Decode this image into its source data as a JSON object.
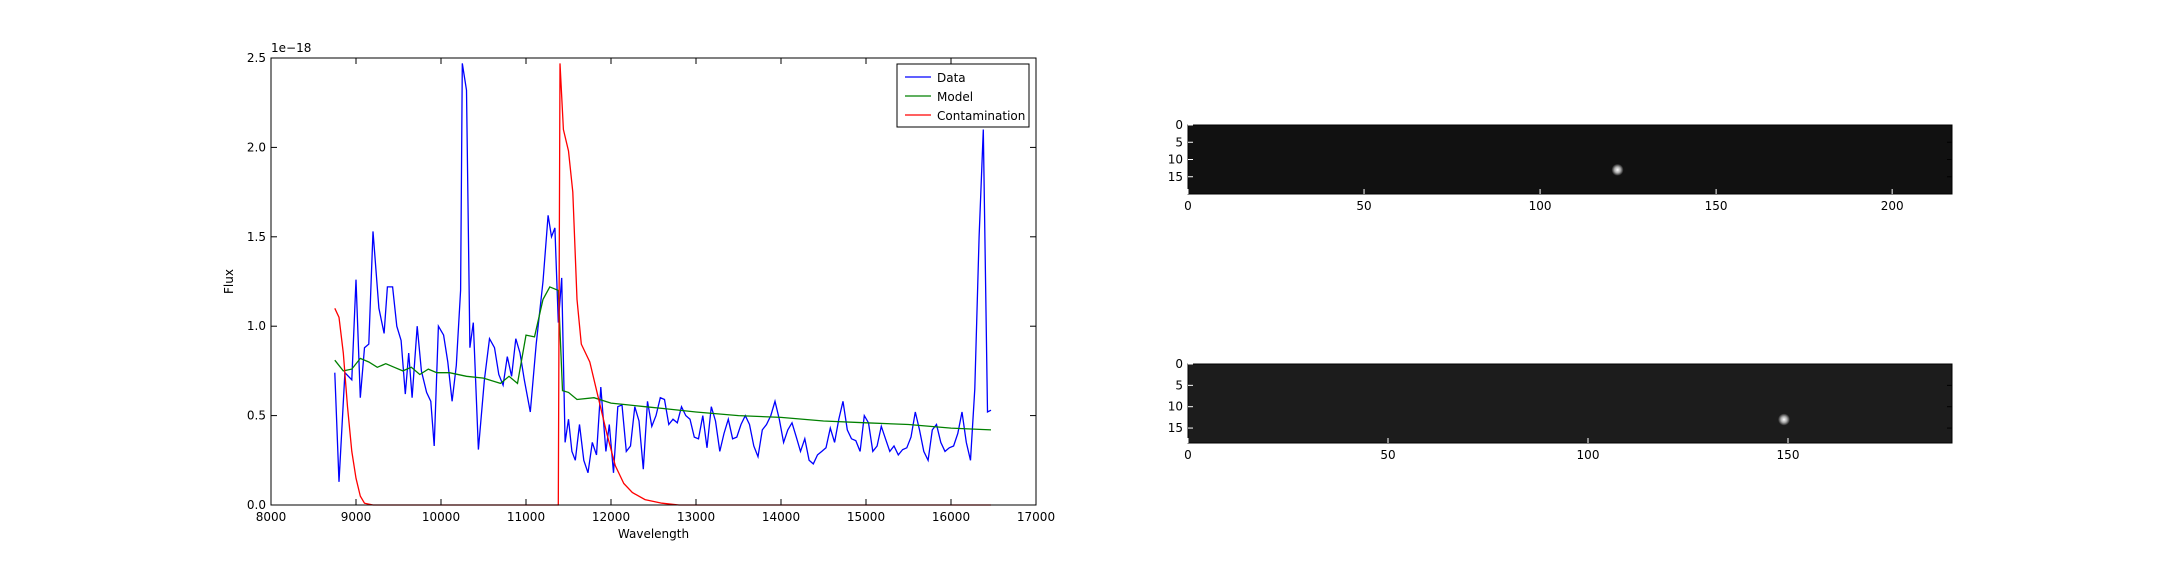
{
  "chart_data": [
    {
      "type": "line",
      "xlabel": "Wavelength",
      "ylabel": "Flux",
      "y_offset_label": "1e−18",
      "xlim": [
        8000,
        17000
      ],
      "xticks": [
        8000,
        9000,
        10000,
        11000,
        12000,
        13000,
        14000,
        15000,
        16000,
        17000
      ],
      "ylim": [
        0,
        2.5
      ],
      "yticks": [
        {
          "value": 0,
          "label": "0.0"
        },
        0.5,
        {
          "value": 1,
          "label": "1.0"
        },
        1.5,
        {
          "value": 2,
          "label": "2.0"
        },
        2.5
      ],
      "legend": "upper right",
      "series": [
        {
          "name": "Data",
          "color": "#0000ff",
          "x": [
            8750,
            8800,
            8870,
            8950,
            9000,
            9050,
            9100,
            9150,
            9200,
            9270,
            9330,
            9370,
            9430,
            9480,
            9530,
            9580,
            9620,
            9660,
            9720,
            9770,
            9830,
            9880,
            9920,
            9970,
            10030,
            10080,
            10130,
            10180,
            10230,
            10250,
            10300,
            10340,
            10380,
            10440,
            10510,
            10570,
            10630,
            10680,
            10730,
            10780,
            10830,
            10880,
            10930,
            10980,
            11050,
            11120,
            11200,
            11260,
            11300,
            11340,
            11380,
            11420,
            11460,
            11500,
            11540,
            11580,
            11630,
            11680,
            11730,
            11780,
            11830,
            11880,
            11940,
            11980,
            12030,
            12080,
            12130,
            12180,
            12230,
            12280,
            12330,
            12380,
            12430,
            12480,
            12530,
            12580,
            12630,
            12680,
            12730,
            12780,
            12830,
            12880,
            12930,
            12980,
            13030,
            13080,
            13130,
            13180,
            13230,
            13280,
            13330,
            13380,
            13430,
            13480,
            13530,
            13580,
            13630,
            13680,
            13730,
            13780,
            13830,
            13880,
            13930,
            13980,
            14030,
            14080,
            14130,
            14180,
            14230,
            14280,
            14330,
            14380,
            14430,
            14480,
            14530,
            14580,
            14630,
            14680,
            14730,
            14780,
            14830,
            14880,
            14930,
            14980,
            15030,
            15080,
            15130,
            15180,
            15230,
            15280,
            15330,
            15380,
            15430,
            15480,
            15530,
            15580,
            15630,
            15680,
            15730,
            15780,
            15830,
            15880,
            15930,
            15980,
            16030,
            16080,
            16130,
            16180,
            16230,
            16280,
            16330,
            16380,
            16430,
            16470
          ],
          "values": [
            0.74,
            0.13,
            0.74,
            0.7,
            1.26,
            0.6,
            0.88,
            0.9,
            1.53,
            1.1,
            0.96,
            1.22,
            1.22,
            1.0,
            0.92,
            0.62,
            0.85,
            0.6,
            1.0,
            0.75,
            0.63,
            0.58,
            0.33,
            1.0,
            0.95,
            0.8,
            0.58,
            0.78,
            1.2,
            2.47,
            2.32,
            0.88,
            1.02,
            0.31,
            0.7,
            0.93,
            0.88,
            0.73,
            0.67,
            0.83,
            0.72,
            0.93,
            0.85,
            0.7,
            0.52,
            0.9,
            1.25,
            1.62,
            1.5,
            1.55,
            1.02,
            1.27,
            0.35,
            0.48,
            0.3,
            0.25,
            0.45,
            0.25,
            0.18,
            0.35,
            0.28,
            0.66,
            0.3,
            0.45,
            0.18,
            0.55,
            0.56,
            0.3,
            0.33,
            0.55,
            0.47,
            0.2,
            0.58,
            0.44,
            0.5,
            0.6,
            0.59,
            0.45,
            0.48,
            0.46,
            0.55,
            0.5,
            0.48,
            0.38,
            0.37,
            0.5,
            0.32,
            0.55,
            0.47,
            0.3,
            0.4,
            0.48,
            0.37,
            0.38,
            0.45,
            0.5,
            0.45,
            0.33,
            0.27,
            0.42,
            0.45,
            0.5,
            0.58,
            0.48,
            0.35,
            0.42,
            0.46,
            0.38,
            0.3,
            0.37,
            0.25,
            0.23,
            0.28,
            0.3,
            0.32,
            0.43,
            0.35,
            0.48,
            0.58,
            0.42,
            0.37,
            0.36,
            0.3,
            0.5,
            0.46,
            0.3,
            0.33,
            0.44,
            0.37,
            0.3,
            0.33,
            0.28,
            0.31,
            0.32,
            0.38,
            0.52,
            0.42,
            0.3,
            0.25,
            0.42,
            0.45,
            0.35,
            0.3,
            0.32,
            0.33,
            0.4,
            0.52,
            0.35,
            0.25,
            0.65,
            1.5,
            2.1,
            0.52,
            0.53
          ]
        },
        {
          "name": "Model",
          "color": "#008000",
          "x": [
            8750,
            8850,
            8950,
            9050,
            9150,
            9250,
            9350,
            9450,
            9550,
            9650,
            9750,
            9850,
            9950,
            10100,
            10300,
            10500,
            10700,
            10800,
            10900,
            11000,
            11100,
            11200,
            11280,
            11380,
            11430,
            11500,
            11600,
            11800,
            12000,
            12200,
            12400,
            12600,
            13000,
            13500,
            14000,
            14500,
            15000,
            15500,
            16000,
            16470
          ],
          "values": [
            0.81,
            0.75,
            0.76,
            0.82,
            0.8,
            0.77,
            0.79,
            0.77,
            0.75,
            0.77,
            0.73,
            0.76,
            0.74,
            0.74,
            0.72,
            0.71,
            0.68,
            0.72,
            0.68,
            0.95,
            0.94,
            1.15,
            1.22,
            1.2,
            0.64,
            0.63,
            0.59,
            0.6,
            0.57,
            0.56,
            0.55,
            0.54,
            0.52,
            0.5,
            0.49,
            0.47,
            0.46,
            0.45,
            0.43,
            0.42
          ]
        },
        {
          "name": "Contamination",
          "color": "#ff0000",
          "x": [
            8750,
            8800,
            8850,
            8900,
            8950,
            9000,
            9050,
            9100,
            9200,
            11350,
            11380,
            11400,
            11440,
            11500,
            11550,
            11600,
            11650,
            11750,
            11850,
            11950,
            12050,
            12150,
            12250,
            12400,
            12600,
            12800,
            16470
          ],
          "values": [
            1.1,
            1.05,
            0.85,
            0.55,
            0.3,
            0.15,
            0.05,
            0.01,
            0,
            0,
            0,
            2.47,
            2.1,
            1.98,
            1.75,
            1.15,
            0.9,
            0.8,
            0.6,
            0.4,
            0.22,
            0.12,
            0.07,
            0.03,
            0.01,
            0,
            0
          ]
        }
      ]
    },
    {
      "type": "image",
      "xlim": [
        0,
        217
      ],
      "ylim": [
        20,
        0
      ],
      "xticks": [
        0,
        50,
        100,
        150,
        200
      ],
      "yticks": [
        0,
        5,
        10,
        15
      ],
      "background": "#111111",
      "spot": {
        "x": 122,
        "y": 13
      }
    },
    {
      "type": "image",
      "xlim": [
        0,
        191
      ],
      "ylim": [
        18.5,
        0
      ],
      "xticks": [
        0,
        50,
        100,
        150
      ],
      "yticks": [
        0,
        5,
        10,
        15
      ],
      "background": "#1c1c1c",
      "spot": {
        "x": 149,
        "y": 13
      }
    }
  ]
}
